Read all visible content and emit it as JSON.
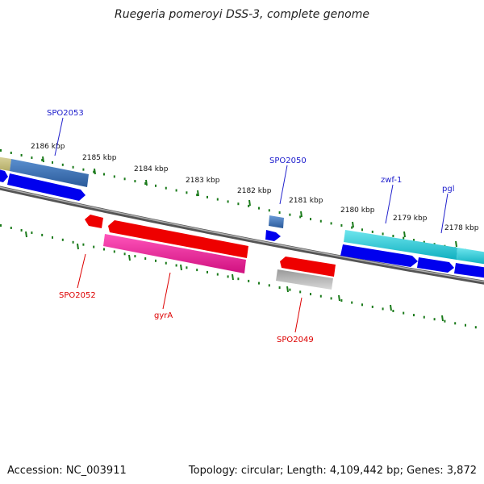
{
  "title": "Ruegeria pomeroyi DSS-3, complete genome",
  "footer": {
    "accession": "Accession: NC_003911",
    "summary": "Topology: circular; Length: 4,109,442 bp; Genes: 3,872"
  },
  "scale_labels": [
    "2186 kbp",
    "2185 kbp",
    "2184 kbp",
    "2183 kbp",
    "2182 kbp",
    "2181 kbp",
    "2180 kbp",
    "2179 kbp",
    "2178 kbp"
  ],
  "gene_labels": {
    "spo2053": "SPO2053",
    "spo2050": "SPO2050",
    "zwf1": "zwf-1",
    "pgl": "pgl",
    "spo2052": "SPO2052",
    "gyra": "gyrA",
    "spo2049": "SPO2049"
  },
  "colors": {
    "cds_forward": "#0000ee",
    "cds_reverse": "#ee0000",
    "tick": "#1a7a1a",
    "backbone": "#808080",
    "label_forward": "#1a1acc",
    "label_reverse": "#dd0000"
  }
}
